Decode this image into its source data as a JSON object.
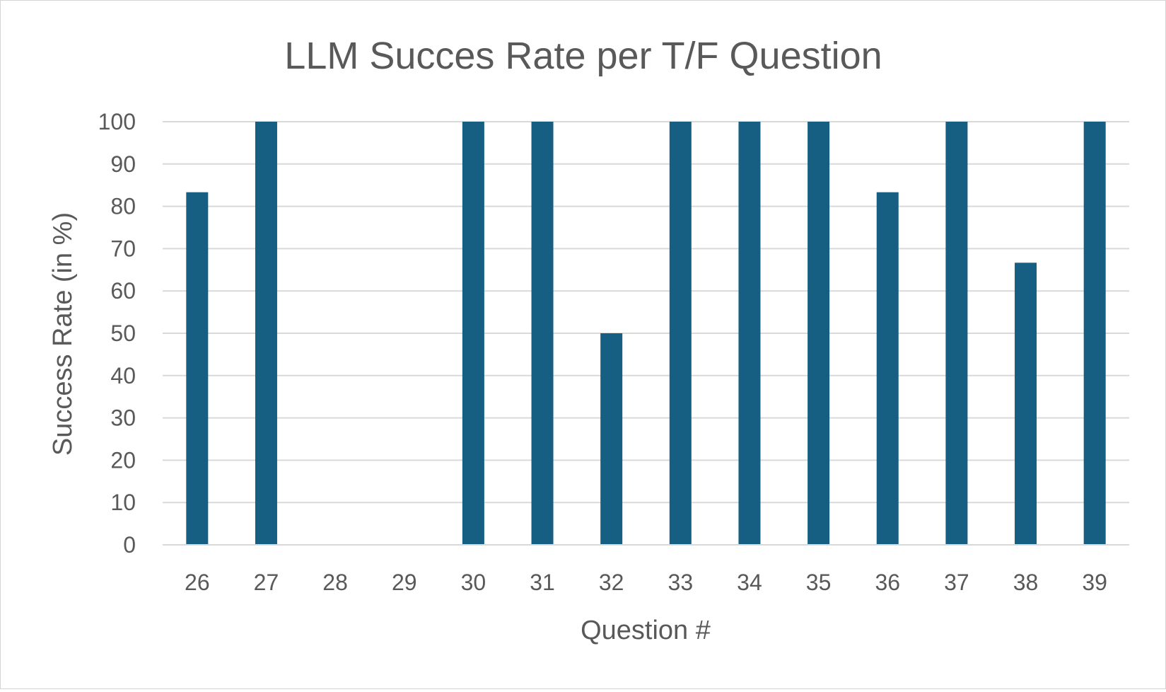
{
  "chart_data": {
    "type": "bar",
    "title": "LLM Succes Rate per T/F Question",
    "xlabel": "Question #",
    "ylabel": "Success Rate (in %)",
    "ylim": [
      0,
      100
    ],
    "yticks": [
      "0",
      "10",
      "20",
      "30",
      "40",
      "50",
      "60",
      "70",
      "80",
      "90",
      "100"
    ],
    "categories": [
      "26",
      "27",
      "28",
      "29",
      "30",
      "31",
      "32",
      "33",
      "34",
      "35",
      "36",
      "37",
      "38",
      "39"
    ],
    "series": [
      {
        "name": "Success Rate",
        "color": "#175f82",
        "values": [
          83.33,
          100,
          0,
          0,
          100,
          100,
          50,
          100,
          100,
          100,
          83.33,
          100,
          66.67,
          100
        ]
      }
    ],
    "grid": true,
    "legend": "none",
    "gridline_color": "#d9d9d9",
    "text_color": "#595959"
  }
}
